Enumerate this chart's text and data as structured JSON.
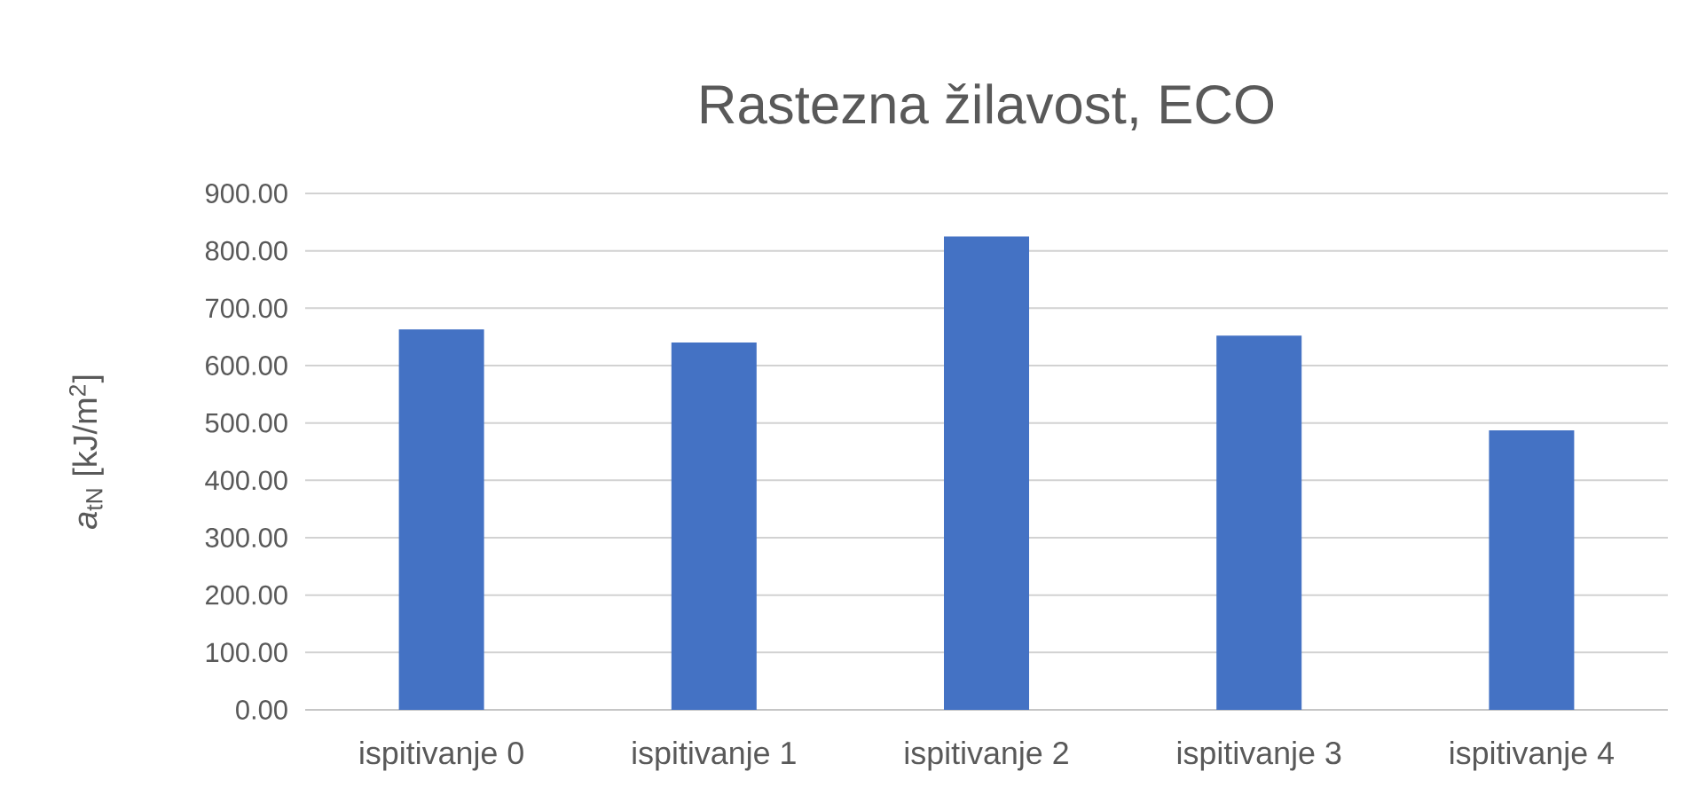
{
  "chart_data": {
    "type": "bar",
    "title": "Rastezna žilavost, ECO",
    "ylabel": "*a*$_{tN}$ [kJ/m$^{2}$]",
    "categories": [
      "ispitivanje 0",
      "ispitivanje 1",
      "ispitivanje 2",
      "ispitivanje 3",
      "ispitivanje 4"
    ],
    "values": [
      663,
      640,
      825,
      652,
      487
    ],
    "color": "#4472c4",
    "ylim": [
      0,
      900
    ],
    "yticks": [
      {
        "value": 0,
        "label": "0.00"
      },
      {
        "value": 100,
        "label": "100.00"
      },
      {
        "value": 200,
        "label": "200.00"
      },
      {
        "value": 300,
        "label": "300.00"
      },
      {
        "value": 400,
        "label": "400.00"
      },
      {
        "value": 500,
        "label": "500.00"
      },
      {
        "value": 600,
        "label": "600.00"
      },
      {
        "value": 700,
        "label": "700.00"
      },
      {
        "value": 800,
        "label": "800.00"
      },
      {
        "value": 900,
        "label": "900.00"
      }
    ],
    "grid": "y"
  }
}
